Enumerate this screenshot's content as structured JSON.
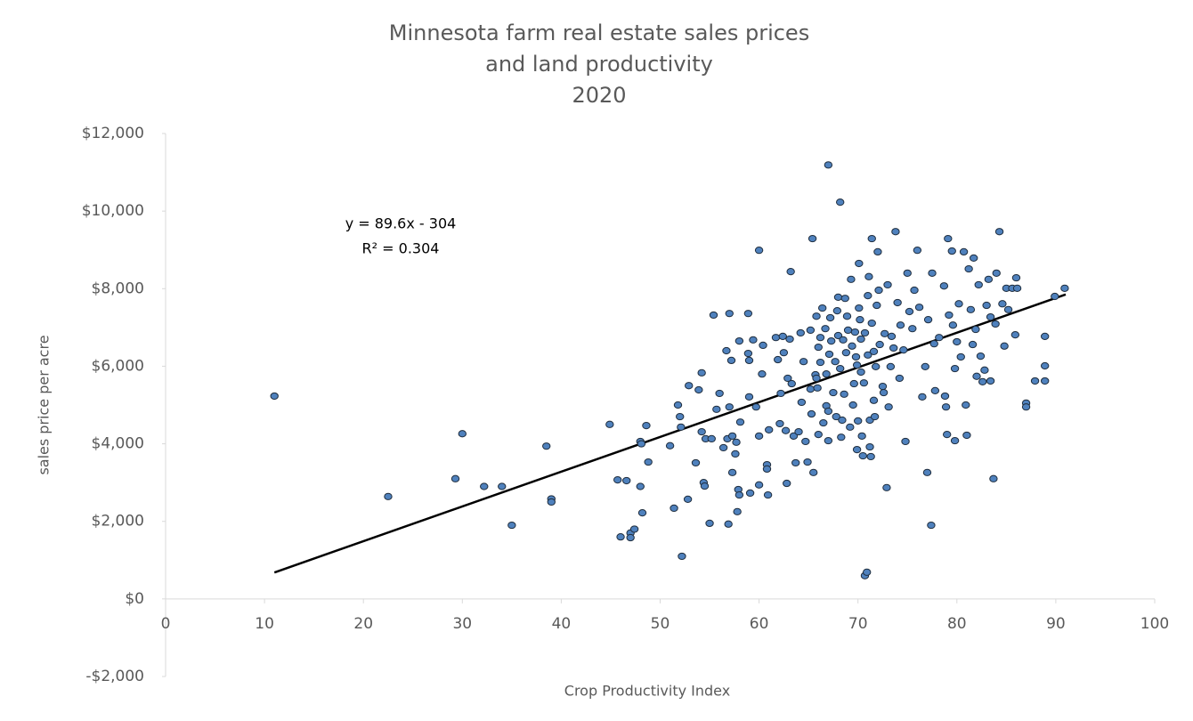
{
  "chart_data": {
    "type": "scatter",
    "title": [
      "Minnesota farm real estate sales prices",
      "and land productivity",
      "2020"
    ],
    "xlabel": "Crop Productivity Index",
    "ylabel": "sales price per acre",
    "annotation": [
      "y = 89.6x - 304",
      "R² = 0.304"
    ],
    "color": "#4f81bd",
    "xlim": [
      0,
      100
    ],
    "xticks": [
      0,
      10,
      20,
      30,
      40,
      50,
      60,
      70,
      80,
      90,
      100
    ],
    "ylim": [
      -2000,
      12000
    ],
    "yticks": [
      {
        "value": -2000,
        "label": "-$2,000"
      },
      {
        "value": 0,
        "label": "$0"
      },
      {
        "value": 2000,
        "label": "$2,000"
      },
      {
        "value": 4000,
        "label": "$4,000"
      },
      {
        "value": 6000,
        "label": "$6,000"
      },
      {
        "value": 8000,
        "label": "$8,000"
      },
      {
        "value": 10000,
        "label": "$10,000"
      },
      {
        "value": 12000,
        "label": "$12,000"
      }
    ],
    "trendline": {
      "color": "#000000",
      "x": [
        11,
        91
      ],
      "values": [
        681.6,
        7849.6
      ]
    },
    "x": [
      11,
      22.5,
      29.3,
      30,
      32.2,
      34,
      35,
      38.5,
      39,
      39,
      44.9,
      45.7,
      46,
      46.6,
      47,
      47,
      47.4,
      48,
      48,
      48.1,
      48.2,
      48.6,
      48.8,
      51,
      51.4,
      51.8,
      52,
      52.2,
      52.1,
      52.8,
      52.9,
      53.6,
      53.9,
      54.2,
      54.2,
      54.4,
      54.5,
      54.6,
      55,
      55.2,
      55.4,
      55.7,
      56,
      56.4,
      56.7,
      56.8,
      56.9,
      57,
      57,
      57.2,
      57.3,
      57.3,
      57.6,
      57.7,
      57.8,
      57.9,
      58,
      58,
      58.1,
      58.9,
      58.9,
      59,
      59,
      59.1,
      59.4,
      59.7,
      60,
      60,
      60,
      60.3,
      60.4,
      60.8,
      60.8,
      60.9,
      61,
      61.7,
      61.9,
      62.1,
      62.2,
      62.4,
      62.5,
      62.7,
      62.8,
      62.9,
      63.1,
      63.2,
      63.3,
      63.5,
      63.7,
      64,
      64.2,
      64.3,
      64.5,
      64.7,
      64.9,
      65.2,
      65.2,
      65.3,
      65.4,
      65.5,
      65.7,
      65.8,
      65.8,
      65.9,
      66,
      66,
      66.2,
      66.2,
      66.4,
      66.5,
      66.7,
      66.8,
      66.8,
      67,
      67,
      67,
      67.1,
      67.2,
      67.3,
      67.5,
      67.7,
      67.8,
      67.9,
      68,
      68,
      68.2,
      68.2,
      68.3,
      68.4,
      68.5,
      68.6,
      68.7,
      68.8,
      68.9,
      69,
      69.2,
      69.3,
      69.4,
      69.5,
      69.6,
      69.7,
      69.8,
      69.9,
      69.9,
      70,
      70.1,
      70.1,
      70.2,
      70.3,
      70.3,
      70.4,
      70.5,
      70.6,
      70.7,
      70.7,
      70.9,
      71,
      71,
      71.1,
      71.2,
      71.2,
      71.3,
      71.4,
      71.4,
      71.6,
      71.6,
      71.7,
      71.8,
      71.9,
      72,
      72.1,
      72.2,
      72.5,
      72.6,
      72.7,
      72.9,
      73,
      73.1,
      73.3,
      73.4,
      73.6,
      73.8,
      74,
      74.2,
      74.3,
      74.6,
      74.8,
      75,
      75.2,
      75.5,
      75.7,
      76,
      76.2,
      76.5,
      76.8,
      77,
      77.1,
      77.4,
      77.5,
      77.7,
      77.8,
      78.2,
      78.7,
      78.8,
      78.9,
      79,
      79.1,
      79.2,
      79.5,
      79.6,
      79.8,
      79.8,
      80,
      80.2,
      80.4,
      80.7,
      80.9,
      81,
      81.2,
      81.4,
      81.6,
      81.7,
      81.9,
      82,
      82.2,
      82.4,
      82.6,
      82.8,
      83,
      83.2,
      83.4,
      83.4,
      83.7,
      83.9,
      84,
      84.3,
      84.6,
      84.8,
      85,
      85.2,
      85.6,
      85.9,
      86,
      86.1,
      87,
      87,
      87.9,
      88.9,
      88.9,
      88.9,
      89.9,
      90.9
    ],
    "values": [
      5230,
      2640,
      3100,
      4260,
      2900,
      2900,
      1900,
      3940,
      2580,
      2500,
      4500,
      3070,
      1600,
      3050,
      1700,
      1580,
      1800,
      2900,
      4060,
      4000,
      2220,
      4470,
      3530,
      3950,
      2340,
      5000,
      4700,
      1100,
      4430,
      2570,
      5500,
      3510,
      5390,
      5830,
      4310,
      3000,
      2910,
      4130,
      1950,
      4130,
      7320,
      4890,
      5300,
      3900,
      6400,
      4130,
      1930,
      4950,
      7360,
      6150,
      3260,
      4200,
      3740,
      4040,
      2250,
      2820,
      6650,
      2680,
      4560,
      6330,
      7360,
      6150,
      5210,
      2730,
      6680,
      4950,
      8990,
      4200,
      2940,
      5800,
      6540,
      3460,
      3350,
      2680,
      4360,
      6740,
      6170,
      4520,
      5300,
      6770,
      6350,
      4340,
      2980,
      5690,
      6700,
      8440,
      5550,
      4200,
      3510,
      4310,
      6860,
      5070,
      6120,
      4060,
      3530,
      6930,
      5410,
      4770,
      9290,
      3260,
      5780,
      7290,
      5690,
      5440,
      6490,
      4240,
      6740,
      6100,
      7500,
      4540,
      6970,
      5800,
      4980,
      11190,
      4840,
      4080,
      6310,
      7250,
      6650,
      5320,
      6120,
      4700,
      7430,
      6790,
      7780,
      10230,
      5940,
      4170,
      4610,
      6680,
      5280,
      7750,
      6350,
      7290,
      6930,
      4430,
      8240,
      6520,
      5000,
      5550,
      6880,
      6240,
      6030,
      3850,
      4590,
      8650,
      7500,
      7200,
      6700,
      5850,
      4200,
      3690,
      5570,
      6860,
      600,
      690,
      7820,
      6290,
      8310,
      4610,
      3920,
      3670,
      7110,
      9290,
      5120,
      6380,
      4700,
      5990,
      7570,
      8950,
      7960,
      6560,
      5480,
      5320,
      6840,
      2870,
      8100,
      4950,
      5990,
      6770,
      6470,
      9470,
      7640,
      5690,
      7060,
      6420,
      4060,
      8400,
      7410,
      6970,
      7960,
      8990,
      7520,
      5210,
      5990,
      3260,
      7200,
      1900,
      8400,
      6580,
      5370,
      6740,
      8070,
      5230,
      4950,
      4240,
      9290,
      7320,
      8970,
      7060,
      5940,
      4080,
      6630,
      7610,
      6240,
      8950,
      5000,
      4220,
      8510,
      7460,
      6560,
      8790,
      6950,
      5740,
      8100,
      6260,
      5600,
      5900,
      7570,
      8240,
      7270,
      5620,
      3100,
      7090,
      8400,
      9470,
      7610,
      6520,
      8010,
      7460,
      8010,
      6810,
      8280,
      8010,
      5050,
      4950,
      5620,
      5620,
      6010,
      6770,
      7800,
      8010
    ]
  }
}
